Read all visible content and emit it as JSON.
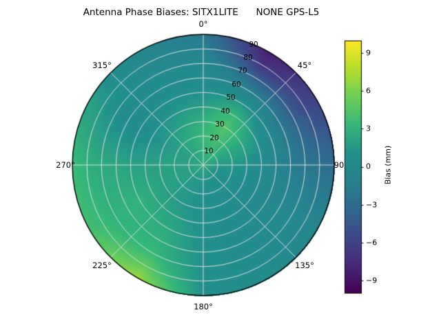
{
  "chart_data": {
    "type": "heatmap",
    "projection": "polar",
    "title": "Antenna Phase Biases: SITX1LITE      NONE GPS-L5",
    "angle_labels": [
      "0°",
      "45°",
      "90",
      "135°",
      "180°",
      "225°",
      "270°",
      "315°"
    ],
    "radial_ticks": [
      "10",
      "20",
      "30",
      "40",
      "50",
      "60",
      "70",
      "80",
      "90"
    ],
    "azimuth_deg": [
      0,
      30,
      60,
      90,
      120,
      150,
      180,
      210,
      240,
      270,
      300,
      330
    ],
    "zenith_deg": [
      0,
      10,
      20,
      30,
      40,
      50,
      60,
      70,
      80,
      90
    ],
    "values": [
      [
        2.5,
        2.5,
        2.5,
        2.5,
        2.5,
        2.5,
        2.5,
        2.5,
        2.5,
        2.5,
        2.5,
        2.5
      ],
      [
        3.0,
        3.5,
        2.5,
        1.5,
        1.0,
        1.0,
        1.5,
        1.5,
        2.0,
        2.0,
        2.0,
        2.5
      ],
      [
        3.5,
        4.0,
        2.5,
        1.5,
        1.0,
        1.0,
        1.0,
        1.5,
        2.0,
        2.0,
        2.0,
        2.5
      ],
      [
        3.0,
        4.5,
        2.5,
        1.0,
        0.5,
        0.5,
        1.0,
        1.5,
        2.0,
        2.0,
        1.5,
        2.0
      ],
      [
        2.0,
        3.5,
        1.5,
        0.5,
        0.0,
        0.5,
        1.0,
        2.0,
        2.5,
        2.0,
        1.0,
        1.5
      ],
      [
        1.0,
        1.5,
        0.0,
        -0.5,
        0.0,
        0.5,
        1.0,
        2.5,
        3.0,
        2.0,
        0.5,
        1.0
      ],
      [
        0.5,
        -1.0,
        -2.0,
        -1.5,
        0.0,
        0.5,
        1.0,
        3.0,
        3.0,
        2.5,
        0.5,
        0.5
      ],
      [
        0.0,
        -4.0,
        -4.0,
        -2.0,
        0.0,
        0.5,
        1.0,
        3.5,
        3.0,
        2.5,
        1.0,
        0.5
      ],
      [
        -1.0,
        -7.0,
        -5.5,
        -2.5,
        -0.5,
        0.5,
        1.0,
        5.0,
        3.5,
        3.0,
        1.5,
        0.0
      ],
      [
        -2.0,
        -8.5,
        -6.0,
        -3.0,
        -0.5,
        0.5,
        1.0,
        7.0,
        4.0,
        3.5,
        2.0,
        -0.5
      ]
    ],
    "colorbar": {
      "label": "Bias (mm)",
      "colormap": "viridis",
      "vmin": -10,
      "vmax": 10,
      "ticks": [
        {
          "value": 9,
          "label": "9"
        },
        {
          "value": 6,
          "label": "6"
        },
        {
          "value": 3,
          "label": "3"
        },
        {
          "value": 0,
          "label": "0"
        },
        {
          "value": -3,
          "label": "−3"
        },
        {
          "value": -6,
          "label": "−6"
        },
        {
          "value": -9,
          "label": "−9"
        }
      ]
    },
    "grid": true
  }
}
